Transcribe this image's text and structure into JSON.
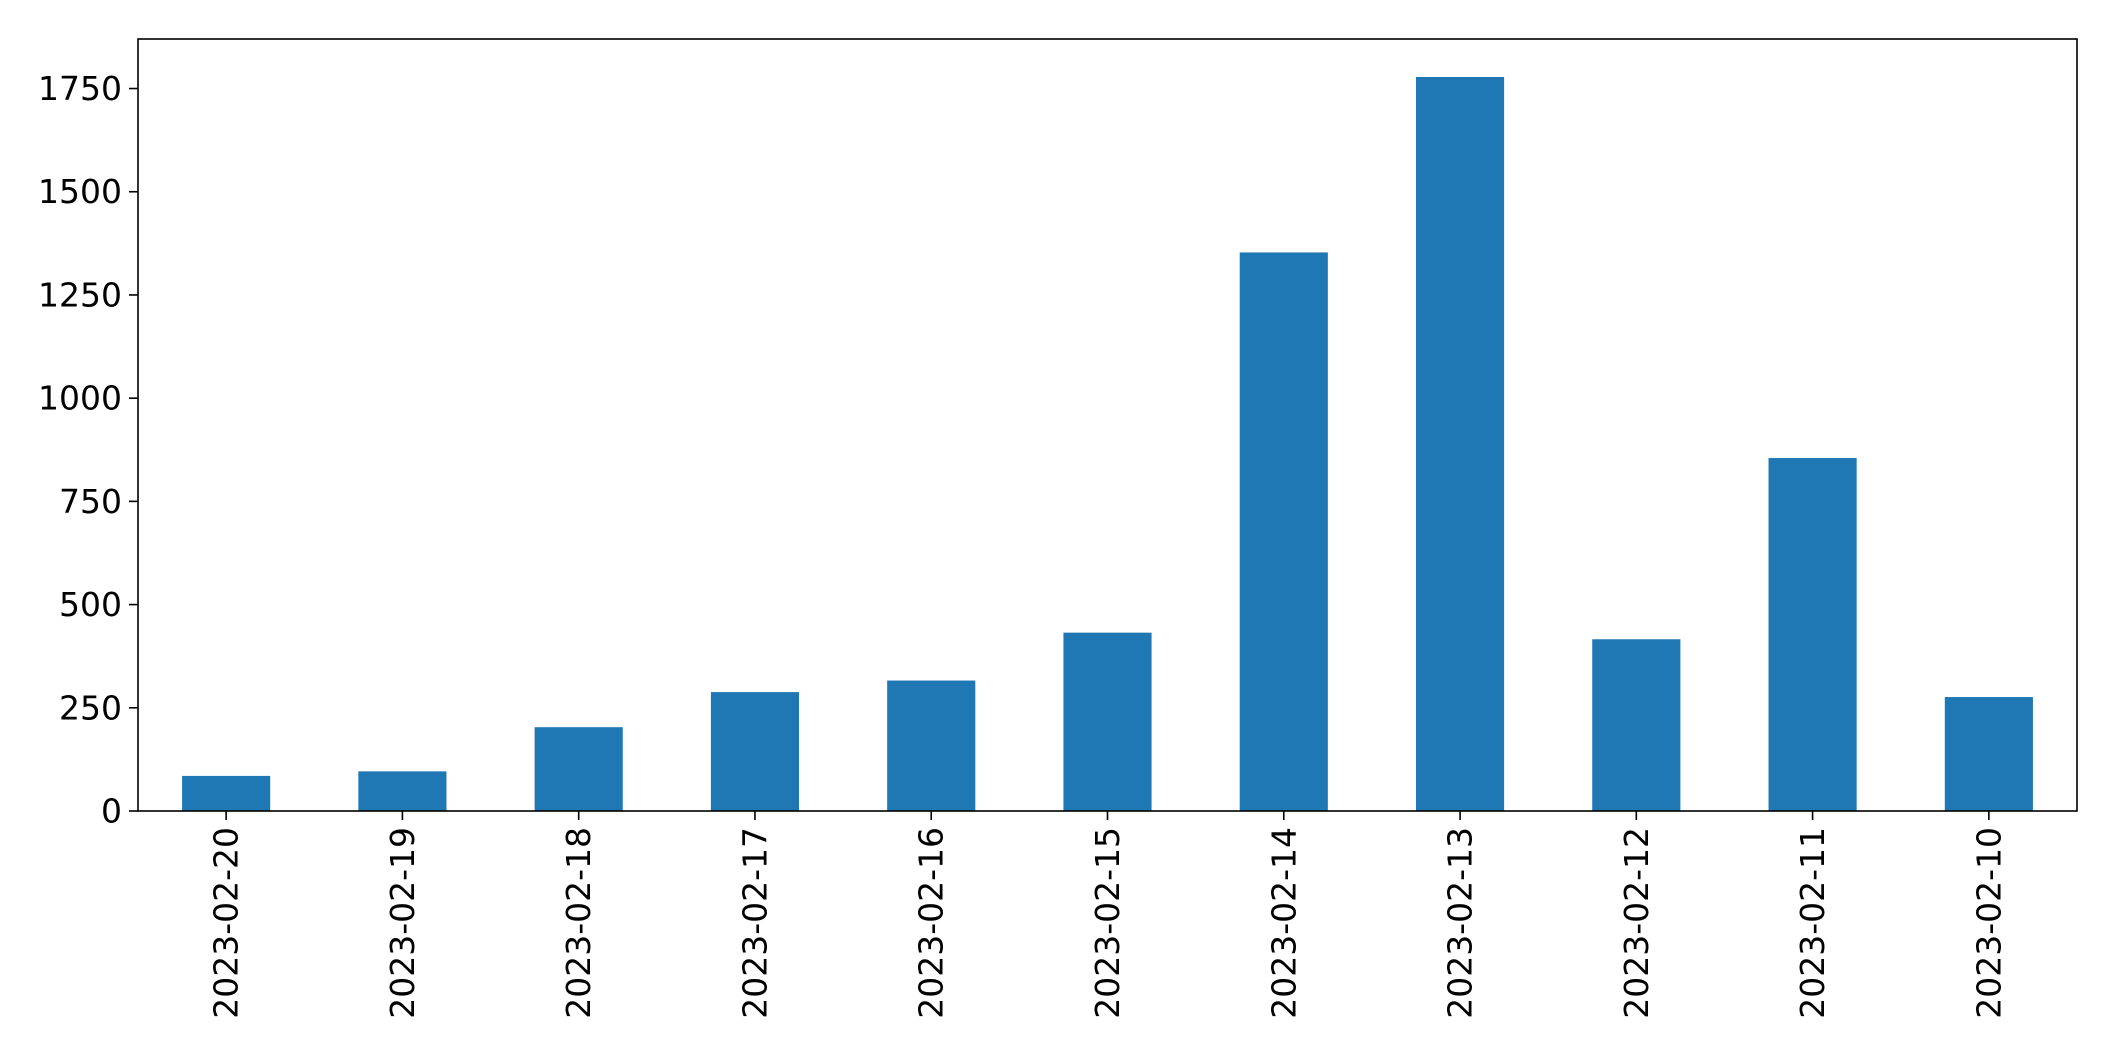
{
  "chart_data": {
    "type": "bar",
    "title": "",
    "xlabel": "",
    "ylabel": "",
    "categories": [
      "2023-02-20",
      "2023-02-19",
      "2023-02-18",
      "2023-02-17",
      "2023-02-16",
      "2023-02-15",
      "2023-02-14",
      "2023-02-13",
      "2023-02-12",
      "2023-02-11",
      "2023-02-10"
    ],
    "values": [
      85,
      96,
      203,
      288,
      316,
      432,
      1353,
      1778,
      416,
      855,
      276
    ],
    "ylim": [
      0,
      1870
    ],
    "yticks": [
      0,
      250,
      500,
      750,
      1000,
      1250,
      1500,
      1750
    ],
    "ytick_labels": [
      "0",
      "250",
      "500",
      "750",
      "1000",
      "1250",
      "1500",
      "1750"
    ],
    "bar_color": "#1f77b4",
    "legend": "none",
    "grid": false
  }
}
